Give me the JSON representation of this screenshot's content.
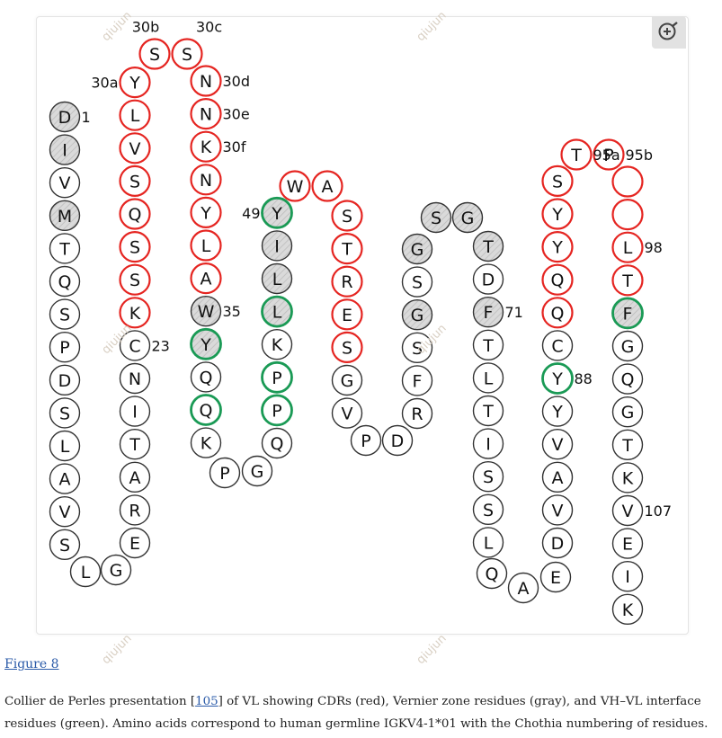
{
  "figure": {
    "link_label": "Figure 8",
    "caption_before_ref": "Collier de Perles presentation [",
    "caption_ref": "105",
    "caption_after_ref": "] of VL showing CDRs (red), Vernier zone residues (gray), and VH–VL interface residues (green). Amino acids correspond to human germline IGKV4-1*01 with the Chothia numbering of residues.",
    "watermark": "qiujun",
    "zoom_icon": "zoom-in-icon"
  },
  "colors": {
    "cdr": "#e52521",
    "interface": "#1a9a55",
    "vernier_fill": "#d6d6d6",
    "default_stroke": "#333333",
    "link": "#2a5aa8"
  },
  "residues": [
    {
      "aa": "D",
      "cls": "vernier"
    },
    {
      "aa": "I",
      "cls": "vernier"
    },
    {
      "aa": "V",
      "cls": "plain"
    },
    {
      "aa": "M",
      "cls": "vernier"
    },
    {
      "aa": "T",
      "cls": "plain"
    },
    {
      "aa": "Q",
      "cls": "plain"
    },
    {
      "aa": "S",
      "cls": "plain"
    },
    {
      "aa": "P",
      "cls": "plain"
    },
    {
      "aa": "D",
      "cls": "plain"
    },
    {
      "aa": "S",
      "cls": "plain"
    },
    {
      "aa": "L",
      "cls": "plain"
    },
    {
      "aa": "A",
      "cls": "plain"
    },
    {
      "aa": "V",
      "cls": "plain"
    },
    {
      "aa": "S",
      "cls": "plain"
    },
    {
      "aa": "L",
      "cls": "plain"
    },
    {
      "aa": "G",
      "cls": "plain"
    },
    {
      "aa": "E",
      "cls": "plain"
    },
    {
      "aa": "R",
      "cls": "plain"
    },
    {
      "aa": "A",
      "cls": "plain"
    },
    {
      "aa": "T",
      "cls": "plain"
    },
    {
      "aa": "I",
      "cls": "plain"
    },
    {
      "aa": "N",
      "cls": "plain"
    },
    {
      "aa": "C",
      "cls": "plain"
    },
    {
      "aa": "K",
      "cls": "cdr"
    },
    {
      "aa": "S",
      "cls": "cdr"
    },
    {
      "aa": "S",
      "cls": "cdr"
    },
    {
      "aa": "Q",
      "cls": "cdr"
    },
    {
      "aa": "S",
      "cls": "cdr"
    },
    {
      "aa": "V",
      "cls": "cdr"
    },
    {
      "aa": "L",
      "cls": "cdr"
    },
    {
      "aa": "Y",
      "cls": "cdr"
    },
    {
      "aa": "S",
      "cls": "cdr"
    },
    {
      "aa": "S",
      "cls": "cdr"
    },
    {
      "aa": "N",
      "cls": "cdr"
    },
    {
      "aa": "N",
      "cls": "cdr"
    },
    {
      "aa": "K",
      "cls": "cdr"
    },
    {
      "aa": "N",
      "cls": "cdr"
    },
    {
      "aa": "Y",
      "cls": "cdr"
    },
    {
      "aa": "L",
      "cls": "cdr"
    },
    {
      "aa": "A",
      "cls": "cdr"
    },
    {
      "aa": "W",
      "cls": "vernier"
    },
    {
      "aa": "Y",
      "cls": "vernier-iface"
    },
    {
      "aa": "Q",
      "cls": "plain"
    },
    {
      "aa": "Q",
      "cls": "iface"
    },
    {
      "aa": "K",
      "cls": "plain"
    },
    {
      "aa": "P",
      "cls": "plain"
    },
    {
      "aa": "G",
      "cls": "plain"
    },
    {
      "aa": "Q",
      "cls": "plain"
    },
    {
      "aa": "P",
      "cls": "iface"
    },
    {
      "aa": "P",
      "cls": "iface"
    },
    {
      "aa": "K",
      "cls": "plain"
    },
    {
      "aa": "L",
      "cls": "vernier-iface"
    },
    {
      "aa": "L",
      "cls": "vernier"
    },
    {
      "aa": "I",
      "cls": "vernier"
    },
    {
      "aa": "Y",
      "cls": "vernier-iface"
    },
    {
      "aa": "W",
      "cls": "cdr"
    },
    {
      "aa": "A",
      "cls": "cdr"
    },
    {
      "aa": "S",
      "cls": "cdr"
    },
    {
      "aa": "T",
      "cls": "cdr"
    },
    {
      "aa": "R",
      "cls": "cdr"
    },
    {
      "aa": "E",
      "cls": "cdr"
    },
    {
      "aa": "S",
      "cls": "cdr"
    },
    {
      "aa": "G",
      "cls": "plain"
    },
    {
      "aa": "V",
      "cls": "plain"
    },
    {
      "aa": "P",
      "cls": "plain"
    },
    {
      "aa": "D",
      "cls": "plain"
    },
    {
      "aa": "R",
      "cls": "plain"
    },
    {
      "aa": "F",
      "cls": "plain"
    },
    {
      "aa": "S",
      "cls": "plain"
    },
    {
      "aa": "G",
      "cls": "vernier"
    },
    {
      "aa": "S",
      "cls": "plain"
    },
    {
      "aa": "G",
      "cls": "vernier"
    },
    {
      "aa": "S",
      "cls": "vernier"
    },
    {
      "aa": "G",
      "cls": "vernier"
    },
    {
      "aa": "T",
      "cls": "vernier"
    },
    {
      "aa": "D",
      "cls": "plain"
    },
    {
      "aa": "F",
      "cls": "vernier"
    },
    {
      "aa": "T",
      "cls": "plain"
    },
    {
      "aa": "L",
      "cls": "plain"
    },
    {
      "aa": "T",
      "cls": "plain"
    },
    {
      "aa": "I",
      "cls": "plain"
    },
    {
      "aa": "S",
      "cls": "plain"
    },
    {
      "aa": "S",
      "cls": "plain"
    },
    {
      "aa": "L",
      "cls": "plain"
    },
    {
      "aa": "Q",
      "cls": "plain"
    },
    {
      "aa": "A",
      "cls": "plain"
    },
    {
      "aa": "E",
      "cls": "plain"
    },
    {
      "aa": "D",
      "cls": "plain"
    },
    {
      "aa": "V",
      "cls": "plain"
    },
    {
      "aa": "A",
      "cls": "plain"
    },
    {
      "aa": "V",
      "cls": "plain"
    },
    {
      "aa": "Y",
      "cls": "plain"
    },
    {
      "aa": "Y",
      "cls": "iface"
    },
    {
      "aa": "C",
      "cls": "plain"
    },
    {
      "aa": "Q",
      "cls": "cdr"
    },
    {
      "aa": "Q",
      "cls": "cdr"
    },
    {
      "aa": "Y",
      "cls": "cdr"
    },
    {
      "aa": "Y",
      "cls": "cdr"
    },
    {
      "aa": "S",
      "cls": "cdr"
    },
    {
      "aa": "T",
      "cls": "cdr"
    },
    {
      "aa": "P",
      "cls": "cdr"
    },
    {
      "aa": "",
      "cls": "cdr"
    },
    {
      "aa": "",
      "cls": "cdr"
    },
    {
      "aa": "L",
      "cls": "cdr"
    },
    {
      "aa": "T",
      "cls": "cdr"
    },
    {
      "aa": "F",
      "cls": "vernier-iface"
    },
    {
      "aa": "G",
      "cls": "plain"
    },
    {
      "aa": "Q",
      "cls": "plain"
    },
    {
      "aa": "G",
      "cls": "plain"
    },
    {
      "aa": "T",
      "cls": "plain"
    },
    {
      "aa": "K",
      "cls": "plain"
    },
    {
      "aa": "V",
      "cls": "plain"
    },
    {
      "aa": "E",
      "cls": "plain"
    },
    {
      "aa": "I",
      "cls": "plain"
    },
    {
      "aa": "K",
      "cls": "plain"
    }
  ],
  "labels": [
    {
      "text": "1",
      "at": 0,
      "side": "right"
    },
    {
      "text": "23",
      "at": 22,
      "side": "right"
    },
    {
      "text": "30a",
      "at": 30,
      "side": "left"
    },
    {
      "text": "30b",
      "at": 31,
      "side": "top"
    },
    {
      "text": "30c",
      "at": 32,
      "side": "topright"
    },
    {
      "text": "30d",
      "at": 33,
      "side": "right"
    },
    {
      "text": "30e",
      "at": 34,
      "side": "right"
    },
    {
      "text": "30f",
      "at": 35,
      "side": "right"
    },
    {
      "text": "35",
      "at": 40,
      "side": "right"
    },
    {
      "text": "49",
      "at": 54,
      "side": "left"
    },
    {
      "text": "71",
      "at": 76,
      "side": "right"
    },
    {
      "text": "88",
      "at": 92,
      "side": "right"
    },
    {
      "text": "95a",
      "at": 99,
      "side": "right"
    },
    {
      "text": "95b",
      "at": 100,
      "side": "right"
    },
    {
      "text": "98",
      "at": 103,
      "side": "right"
    },
    {
      "text": "107",
      "at": 111,
      "side": "right"
    }
  ]
}
